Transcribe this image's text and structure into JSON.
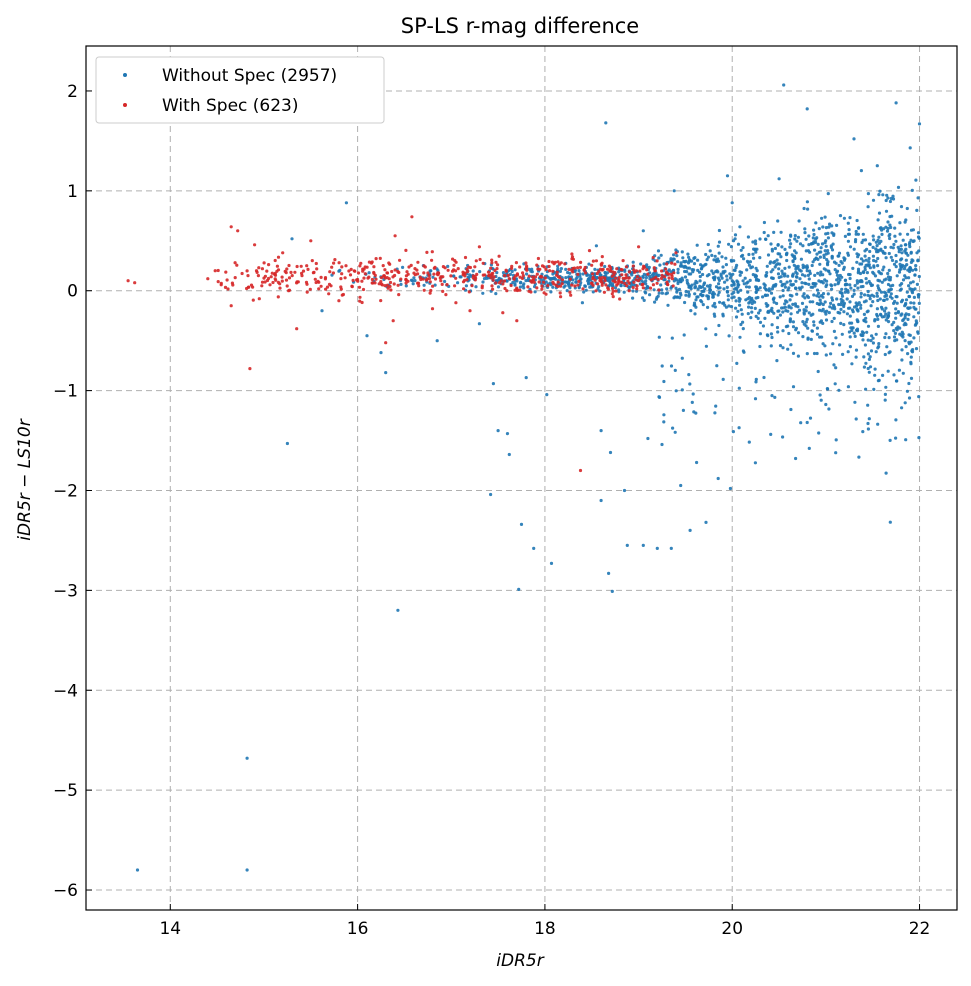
{
  "chart_data": {
    "type": "scatter",
    "title": "SP-LS r-mag difference",
    "xlabel": "iDR5r",
    "ylabel": "iDR5r − LS10r",
    "xlim": [
      13.1,
      22.4
    ],
    "ylim": [
      -6.2,
      2.45
    ],
    "x_ticks": [
      14,
      16,
      18,
      20,
      22
    ],
    "y_ticks": [
      2,
      1,
      0,
      -1,
      -2,
      -3,
      -4,
      -5,
      -6
    ],
    "x_tick_labels": [
      "14",
      "16",
      "18",
      "20",
      "22"
    ],
    "y_tick_labels": [
      "2",
      "1",
      "0",
      "−1",
      "−2",
      "−3",
      "−4",
      "−5",
      "−6"
    ],
    "grid": true,
    "legend_position": "upper-left",
    "series": [
      {
        "name": "Without Spec (2957)",
        "color": "#1f77b4",
        "points": [
          [
            13.65,
            -5.8
          ],
          [
            14.82,
            -5.8
          ],
          [
            14.82,
            -4.68
          ],
          [
            15.25,
            -1.53
          ],
          [
            16.43,
            -3.2
          ],
          [
            17.72,
            -2.99
          ],
          [
            17.88,
            -2.58
          ],
          [
            18.07,
            -2.73
          ],
          [
            17.62,
            -1.64
          ],
          [
            17.75,
            -2.34
          ],
          [
            17.42,
            -2.04
          ],
          [
            18.72,
            -3.01
          ],
          [
            18.68,
            -2.83
          ],
          [
            18.88,
            -2.55
          ],
          [
            19.2,
            -2.58
          ],
          [
            17.5,
            -1.4
          ],
          [
            17.6,
            -1.43
          ],
          [
            18.6,
            -2.1
          ],
          [
            18.85,
            -2.0
          ],
          [
            19.05,
            -2.55
          ],
          [
            19.35,
            -2.58
          ],
          [
            19.55,
            -2.4
          ],
          [
            19.72,
            -2.32
          ],
          [
            19.98,
            -1.98
          ],
          [
            17.8,
            -0.87
          ],
          [
            18.02,
            -1.04
          ],
          [
            17.45,
            -0.93
          ],
          [
            18.6,
            -1.4
          ],
          [
            18.7,
            -1.62
          ],
          [
            19.1,
            -1.48
          ],
          [
            19.25,
            -1.54
          ],
          [
            19.45,
            -1.95
          ],
          [
            19.62,
            -1.72
          ],
          [
            19.85,
            -1.88
          ],
          [
            15.88,
            0.88
          ],
          [
            18.65,
            1.68
          ],
          [
            19.38,
            1.0
          ],
          [
            20.55,
            2.06
          ],
          [
            20.8,
            1.82
          ],
          [
            21.75,
            1.88
          ],
          [
            22.0,
            1.67
          ],
          [
            21.9,
            1.43
          ],
          [
            20.5,
            1.12
          ],
          [
            21.3,
            1.52
          ],
          [
            15.3,
            0.52
          ],
          [
            15.62,
            -0.2
          ],
          [
            16.25,
            -0.62
          ],
          [
            16.3,
            -0.82
          ],
          [
            16.1,
            -0.45
          ],
          [
            16.85,
            -0.5
          ],
          [
            17.3,
            -0.33
          ],
          [
            18.4,
            -0.12
          ],
          [
            18.55,
            0.45
          ],
          [
            19.05,
            0.6
          ],
          [
            20.0,
            0.88
          ],
          [
            19.95,
            1.15
          ]
        ]
      },
      {
        "name": "With Spec (623)",
        "color": "#d62728",
        "points": [
          [
            13.55,
            0.1
          ],
          [
            13.62,
            0.08
          ],
          [
            14.4,
            0.12
          ],
          [
            14.48,
            0.2
          ],
          [
            14.65,
            0.64
          ],
          [
            14.72,
            0.6
          ],
          [
            14.85,
            -0.78
          ],
          [
            14.65,
            -0.15
          ],
          [
            15.35,
            -0.38
          ],
          [
            16.3,
            -0.52
          ],
          [
            16.38,
            -0.3
          ],
          [
            16.58,
            0.74
          ],
          [
            17.05,
            -0.12
          ],
          [
            17.2,
            -0.2
          ],
          [
            18.38,
            -1.8
          ],
          [
            18.05,
            0.2
          ],
          [
            14.9,
            0.46
          ],
          [
            15.2,
            0.38
          ],
          [
            15.5,
            0.5
          ],
          [
            16.4,
            0.55
          ],
          [
            17.3,
            0.44
          ],
          [
            18.55,
            0.3
          ],
          [
            19.0,
            0.44
          ],
          [
            19.4,
            0.38
          ],
          [
            14.95,
            -0.08
          ],
          [
            15.8,
            -0.1
          ],
          [
            16.8,
            -0.18
          ],
          [
            17.55,
            -0.22
          ],
          [
            17.7,
            -0.3
          ],
          [
            18.9,
            0.0
          ]
        ]
      }
    ]
  }
}
